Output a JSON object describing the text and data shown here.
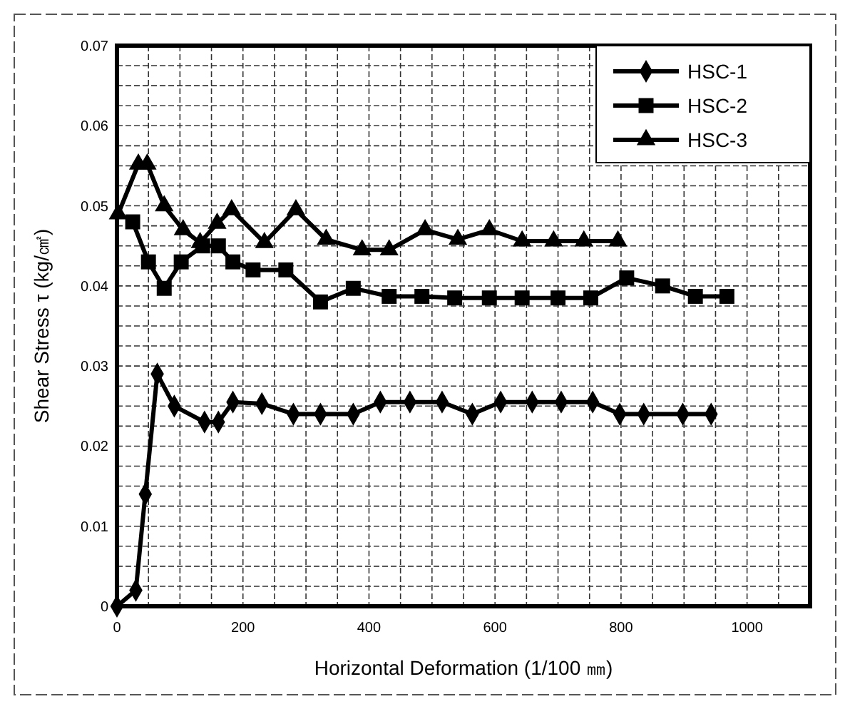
{
  "chart_data": {
    "type": "line",
    "xlabel": "Horizontal Deformation (1/100 ㎜)",
    "ylabel": "Shear Stress τ (kg/㎠)",
    "xlim": [
      0,
      1100
    ],
    "xticks": [
      0,
      {
        "value": 50,
        "label": null
      },
      {
        "value": 100,
        "label": null
      },
      {
        "value": 150,
        "label": null
      },
      200,
      {
        "value": 250,
        "label": null
      },
      {
        "value": 300,
        "label": null
      },
      {
        "value": 350,
        "label": null
      },
      400,
      {
        "value": 450,
        "label": null
      },
      {
        "value": 500,
        "label": null
      },
      {
        "value": 550,
        "label": null
      },
      600,
      {
        "value": 650,
        "label": null
      },
      {
        "value": 700,
        "label": null
      },
      {
        "value": 750,
        "label": null
      },
      800,
      {
        "value": 850,
        "label": null
      },
      {
        "value": 900,
        "label": null
      },
      {
        "value": 950,
        "label": null
      },
      1000,
      {
        "value": 1050,
        "label": null
      }
    ],
    "ylim": [
      0,
      0.07
    ],
    "yticks": [
      0,
      {
        "value": 0.0025,
        "label": null
      },
      {
        "value": 0.005,
        "label": null
      },
      {
        "value": 0.0075,
        "label": null
      },
      0.01,
      {
        "value": 0.0125,
        "label": null
      },
      {
        "value": 0.015,
        "label": null
      },
      {
        "value": 0.0175,
        "label": null
      },
      0.02,
      {
        "value": 0.0225,
        "label": null
      },
      {
        "value": 0.025,
        "label": null
      },
      {
        "value": 0.0275,
        "label": null
      },
      0.03,
      {
        "value": 0.0325,
        "label": null
      },
      {
        "value": 0.035,
        "label": null
      },
      {
        "value": 0.0375,
        "label": null
      },
      0.04,
      {
        "value": 0.0425,
        "label": null
      },
      {
        "value": 0.045,
        "label": null
      },
      {
        "value": 0.0475,
        "label": null
      },
      0.05,
      {
        "value": 0.0525,
        "label": null
      },
      {
        "value": 0.055,
        "label": null
      },
      {
        "value": 0.0575,
        "label": null
      },
      0.06,
      {
        "value": 0.0625,
        "label": null
      },
      {
        "value": 0.065,
        "label": null
      },
      {
        "value": 0.0675,
        "label": null
      },
      0.07
    ],
    "grid": true,
    "legend": "top right",
    "line_style": "solid",
    "series": [
      {
        "name": "HSC-1",
        "color": "#000000",
        "marker": "diamond",
        "x": [
          0,
          30,
          45,
          64,
          91,
          139,
          161,
          184,
          230,
          280,
          323,
          375,
          418,
          465,
          516,
          564,
          609,
          659,
          705,
          755,
          798,
          836,
          898,
          943
        ],
        "values": [
          0,
          0.002,
          0.014,
          0.029,
          0.025,
          0.023,
          0.023,
          0.0255,
          0.0253,
          0.024,
          0.024,
          0.024,
          0.0255,
          0.0255,
          0.0255,
          0.024,
          0.0255,
          0.0255,
          0.0255,
          0.0255,
          0.024,
          0.024,
          0.024,
          0.024
        ]
      },
      {
        "name": "HSC-2",
        "color": "#000000",
        "marker": "square",
        "x": [
          25,
          50,
          75,
          102,
          136,
          161,
          184,
          216,
          268,
          323,
          375,
          432,
          484,
          536,
          591,
          643,
          700,
          752,
          809,
          866,
          918,
          968
        ],
        "values": [
          0.048,
          0.043,
          0.0397,
          0.043,
          0.045,
          0.045,
          0.043,
          0.042,
          0.042,
          0.038,
          0.0397,
          0.0387,
          0.0387,
          0.0385,
          0.0385,
          0.0385,
          0.0385,
          0.0385,
          0.041,
          0.04,
          0.0387,
          0.0387
        ]
      },
      {
        "name": "HSC-3",
        "color": "#000000",
        "marker": "triangle",
        "x": [
          2,
          34,
          48,
          75,
          105,
          132,
          159,
          182,
          234,
          284,
          332,
          389,
          432,
          489,
          541,
          591,
          643,
          693,
          741,
          795
        ],
        "values": [
          0.049,
          0.0552,
          0.0552,
          0.05,
          0.047,
          0.0454,
          0.0478,
          0.0495,
          0.0454,
          0.0495,
          0.0458,
          0.0445,
          0.0445,
          0.047,
          0.0458,
          0.047,
          0.0456,
          0.0456,
          0.0456,
          0.0456
        ]
      }
    ]
  }
}
